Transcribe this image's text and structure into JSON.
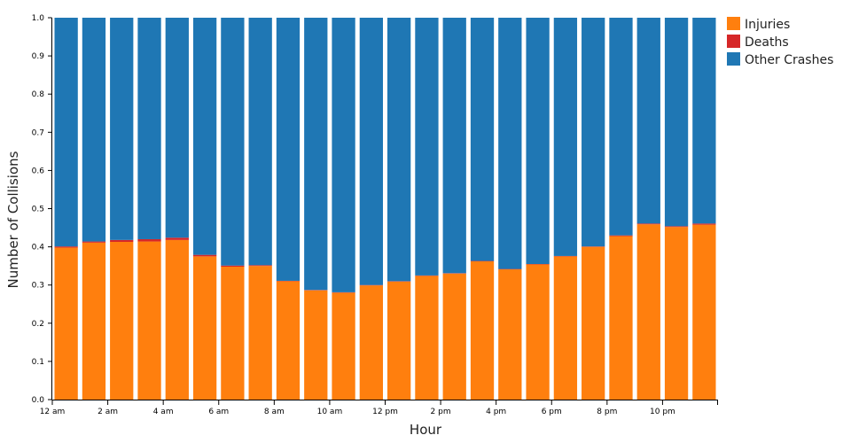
{
  "chart_data": {
    "type": "bar",
    "stacked": true,
    "xlabel": "Hour",
    "ylabel": "Number of Collisions",
    "ylim": [
      0,
      1
    ],
    "yticks": [
      "0.0",
      "0.1",
      "0.2",
      "0.3",
      "0.4",
      "0.5",
      "0.6",
      "0.7",
      "0.8",
      "0.9",
      "1.0"
    ],
    "xticks": [
      "12 am",
      "2 am",
      "4 am",
      "6 am",
      "8 am",
      "10 am",
      "12 pm",
      "2 pm",
      "4 pm",
      "6 pm",
      "8 pm",
      "10 pm"
    ],
    "categories": [
      0,
      1,
      2,
      3,
      4,
      5,
      6,
      7,
      8,
      9,
      10,
      11,
      12,
      13,
      14,
      15,
      16,
      17,
      18,
      19,
      20,
      21,
      22,
      23
    ],
    "legend_position": "top-right",
    "series": [
      {
        "name": "Injuries",
        "color": "#ff7f0e",
        "values": [
          0.398,
          0.411,
          0.413,
          0.414,
          0.418,
          0.375,
          0.348,
          0.35,
          0.31,
          0.286,
          0.28,
          0.299,
          0.309,
          0.324,
          0.33,
          0.362,
          0.341,
          0.354,
          0.375,
          0.4,
          0.428,
          0.459,
          0.452,
          0.458
        ]
      },
      {
        "name": "Deaths",
        "color": "#d62728",
        "values": [
          0.003,
          0.003,
          0.005,
          0.006,
          0.006,
          0.004,
          0.003,
          0.002,
          0.001,
          0.001,
          0.001,
          0.001,
          0.001,
          0.001,
          0.001,
          0.001,
          0.001,
          0.001,
          0.001,
          0.001,
          0.002,
          0.002,
          0.002,
          0.003
        ]
      },
      {
        "name": "Other Crashes",
        "color": "#1f77b4",
        "values": [
          0.599,
          0.586,
          0.582,
          0.58,
          0.576,
          0.621,
          0.649,
          0.648,
          0.689,
          0.713,
          0.719,
          0.7,
          0.69,
          0.675,
          0.669,
          0.637,
          0.658,
          0.645,
          0.624,
          0.599,
          0.57,
          0.539,
          0.546,
          0.539
        ]
      }
    ]
  }
}
